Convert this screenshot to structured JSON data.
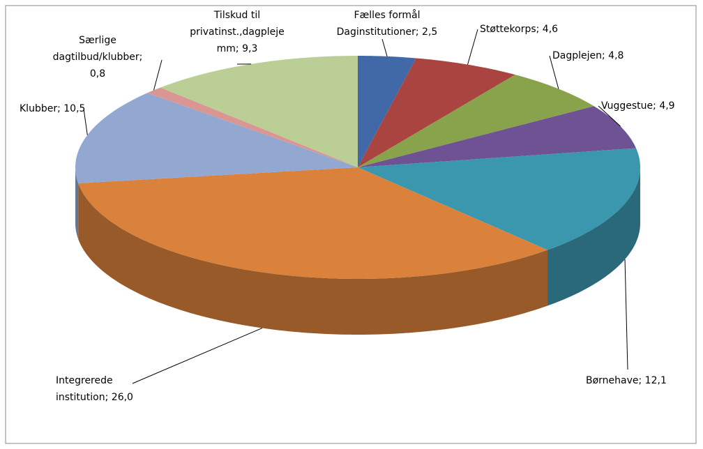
{
  "chart_data": {
    "type": "pie",
    "values": [
      2.5,
      4.6,
      4.8,
      4.9,
      12.1,
      26.0,
      10.5,
      0.8,
      9.3
    ],
    "value_labels": [
      "Fælles formål\nDaginstitutioner; 2,5",
      "Støttekorps;  4,6",
      "Dagplejen; 4,8",
      "Vuggestue;  4,9",
      "Børnehave; 12,1",
      "Integrerede\ninstitution; 26,0",
      "Klubber; 10,5",
      "Særlige\ndagtilbud/klubber;\n0,8",
      "Tilskud til\nprivatinst.,dagpleje\nmm;  9,3"
    ],
    "colors": [
      "#4169a8",
      "#aa4441",
      "#88a34b",
      "#6f5293",
      "#3b97ae",
      "#da813b",
      "#92a8d1",
      "#d99693",
      "#bbce96"
    ],
    "three_d": true
  }
}
